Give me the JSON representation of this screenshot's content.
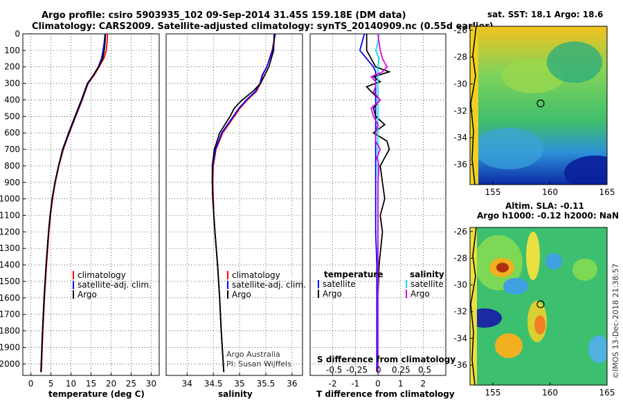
{
  "header": {
    "line1": "Argo profile: csiro 5903935_102 09-Sep-2014 31.45S 159.18E (DM data)",
    "line2": "Climatology: CARS2009. Satellite-adjusted climatology: synTS_20140909.nc (0.55d earlier)"
  },
  "colors": {
    "climatology": "#ff0000",
    "satellite": "#0000ff",
    "argo": "#000000",
    "sat_salinity": "#00e5ee",
    "argo_salinity": "#e000e0"
  },
  "chart_data": [
    {
      "type": "line",
      "id": "temperature",
      "xlabel": "temperature (deg C)",
      "xlim": [
        -2,
        32
      ],
      "xticks": [
        0,
        5,
        10,
        15,
        20,
        25,
        30
      ],
      "xticklabels": [
        "0",
        "5",
        "10",
        "15",
        "20",
        "25",
        "30"
      ],
      "ylim": [
        2070,
        0
      ],
      "yticks": [
        0,
        100,
        200,
        300,
        400,
        500,
        600,
        700,
        800,
        900,
        1000,
        1100,
        1200,
        1300,
        1400,
        1500,
        1600,
        1700,
        1800,
        1900,
        2000
      ],
      "yticklabels": [
        "0",
        "100",
        "200",
        "300",
        "400",
        "500",
        "600",
        "700",
        "800",
        "900",
        "1000",
        "1100",
        "1200",
        "1300",
        "1400",
        "1500",
        "1600",
        "1700",
        "1800",
        "1900",
        "2000"
      ],
      "grid": true,
      "legend": {
        "placement": "lower-center",
        "entries": [
          "climatology",
          "satellite-adj. clim.",
          "Argo"
        ]
      },
      "depth": [
        0,
        50,
        100,
        150,
        200,
        250,
        300,
        400,
        500,
        600,
        700,
        800,
        900,
        1000,
        1100,
        1200,
        1400,
        1600,
        1800,
        2050
      ],
      "series": [
        {
          "name": "climatology",
          "color": "#ff0000",
          "values": [
            19.1,
            19.0,
            18.8,
            18.2,
            17.0,
            15.8,
            14.3,
            12.8,
            11.2,
            9.6,
            8.1,
            7.0,
            6.1,
            5.4,
            4.9,
            4.5,
            3.9,
            3.4,
            3.0,
            2.6
          ]
        },
        {
          "name": "satellite-adj. clim.",
          "color": "#0000ff",
          "values": [
            18.5,
            18.3,
            18.0,
            17.6,
            16.8,
            15.6,
            14.2,
            12.7,
            11.1,
            9.5,
            8.0,
            6.9,
            6.0,
            5.3,
            4.8,
            4.4,
            3.8,
            3.3,
            2.9,
            2.5
          ]
        },
        {
          "name": "Argo",
          "color": "#000000",
          "values": [
            18.6,
            18.5,
            18.3,
            17.9,
            16.9,
            15.6,
            14.1,
            12.6,
            11.0,
            9.4,
            7.9,
            6.9,
            6.0,
            5.3,
            4.8,
            4.4,
            3.8,
            3.3,
            2.9,
            2.5
          ]
        }
      ]
    },
    {
      "type": "line",
      "id": "salinity",
      "xlabel": "salinity",
      "xlim": [
        33.6,
        36.2
      ],
      "xticks": [
        34,
        34.5,
        35,
        35.5,
        36
      ],
      "xticklabels": [
        "34",
        "34.5",
        "35",
        "35.5",
        "36"
      ],
      "ylim": [
        2070,
        0
      ],
      "grid": true,
      "legend": {
        "placement": "lower-center",
        "entries": [
          "climatology",
          "satellite-adj. clim.",
          "Argo"
        ]
      },
      "annotation": [
        "Argo Australia",
        "PI: Susan Wijffels"
      ],
      "depth": [
        0,
        100,
        200,
        250,
        300,
        350,
        400,
        450,
        500,
        600,
        700,
        800,
        900,
        1000,
        1100,
        1200,
        1400,
        1600,
        1800,
        2050
      ],
      "series": [
        {
          "name": "climatology",
          "color": "#ff0000",
          "values": [
            35.68,
            35.62,
            35.52,
            35.44,
            35.4,
            35.32,
            35.15,
            35.01,
            34.9,
            34.68,
            34.55,
            34.5,
            34.49,
            34.5,
            34.51,
            34.53,
            34.58,
            34.62,
            34.65,
            34.7
          ]
        },
        {
          "name": "satellite-adj. clim.",
          "color": "#0000ff",
          "values": [
            35.68,
            35.63,
            35.52,
            35.43,
            35.39,
            35.3,
            35.13,
            34.99,
            34.88,
            34.66,
            34.54,
            34.49,
            34.48,
            34.49,
            34.51,
            34.53,
            34.58,
            34.62,
            34.65,
            34.7
          ]
        },
        {
          "name": "Argo",
          "color": "#000000",
          "values": [
            35.66,
            35.65,
            35.56,
            35.48,
            35.4,
            35.25,
            35.05,
            34.9,
            34.82,
            34.62,
            34.52,
            34.48,
            34.48,
            34.49,
            34.51,
            34.53,
            34.58,
            34.62,
            34.65,
            34.7
          ]
        }
      ]
    },
    {
      "type": "line",
      "id": "difference",
      "xlabel": "T difference from climatology",
      "xlabel2": "S difference from climatology",
      "xlim": [
        -3,
        3
      ],
      "xticks": [
        -2,
        -1,
        0,
        1,
        2
      ],
      "xticklabels": [
        "-2",
        "-1",
        "0",
        "1",
        "2"
      ],
      "xticks2_labels": [
        "-0.5",
        "-0.25",
        "0",
        "0.25",
        "0.5"
      ],
      "ylim": [
        2070,
        0
      ],
      "grid": true,
      "legend": {
        "placement": "lower-center",
        "temperature_title": "temperature",
        "salinity_title": "salinity",
        "entries": [
          "satellite",
          "Argo",
          "satellite",
          "Argo"
        ]
      },
      "depth": [
        0,
        50,
        100,
        150,
        200,
        230,
        260,
        290,
        320,
        350,
        400,
        450,
        500,
        550,
        600,
        650,
        700,
        750,
        800,
        900,
        1000,
        1100,
        1200,
        1400,
        1600,
        1800,
        2050
      ],
      "series": [
        {
          "name": "T satellite",
          "color": "#0000ff",
          "values": [
            -0.6,
            -0.7,
            -0.8,
            -0.5,
            -0.2,
            -0.1,
            -0.1,
            -0.1,
            -0.1,
            -0.1,
            -0.1,
            -0.1,
            -0.1,
            -0.1,
            -0.1,
            -0.1,
            -0.1,
            -0.1,
            -0.1,
            -0.1,
            -0.1,
            -0.1,
            -0.1,
            -0.05,
            -0.05,
            -0.05,
            -0.05
          ]
        },
        {
          "name": "T Argo",
          "color": "#000000",
          "values": [
            -0.5,
            -0.5,
            -0.5,
            -0.3,
            -0.1,
            0.5,
            -0.2,
            0.1,
            -0.5,
            -0.3,
            0.1,
            -0.2,
            -0.1,
            0.3,
            -0.2,
            0.4,
            0.5,
            0.3,
            0.1,
            0.2,
            0.3,
            0.1,
            0.2,
            0.05,
            0.0,
            0.0,
            0.0
          ]
        },
        {
          "name": "S satellite",
          "color": "#00e5ee",
          "values": [
            0.05,
            0.0,
            -0.1,
            0.05,
            0.0,
            0.0,
            0.0,
            0.0,
            0.0,
            0.0,
            0.0,
            0.0,
            0.0,
            0.0,
            0.0,
            0.0,
            0.0,
            0.0,
            0.0,
            0.0,
            0.0,
            0.0,
            0.0,
            0.0,
            0.0,
            0.0,
            0.0
          ]
        },
        {
          "name": "S Argo",
          "color": "#e000e0",
          "values": [
            0.0,
            0.05,
            0.1,
            0.2,
            0.4,
            0.2,
            -0.3,
            -0.1,
            -0.1,
            -0.2,
            0.1,
            -0.3,
            -0.2,
            0.0,
            -0.1,
            -0.1,
            0.1,
            -0.05,
            0.05,
            0.0,
            0.0,
            0.0,
            0.0,
            0.0,
            0.0,
            0.0,
            0.0
          ]
        }
      ]
    },
    {
      "type": "heatmap",
      "id": "sst_map",
      "title": "sat. SST: 18.1 Argo: 18.6",
      "xlim": [
        153,
        165
      ],
      "ylim": [
        -37.5,
        -25.7
      ],
      "xticks": [
        155,
        160,
        165
      ],
      "yticks": [
        -26,
        -28,
        -30,
        -32,
        -34,
        -36
      ],
      "profile_lon": 159.18,
      "profile_lat": -31.45
    },
    {
      "type": "heatmap",
      "id": "sla_map",
      "title_line1": "Altim. SLA: -0.11",
      "title_line2": "Argo h1000: -0.12 h2000: NaN",
      "xlim": [
        153,
        165
      ],
      "ylim": [
        -37.5,
        -25.7
      ],
      "xticks": [
        155,
        160,
        165
      ],
      "yticks": [
        -26,
        -28,
        -30,
        -32,
        -34,
        -36
      ],
      "profile_lon": 159.18,
      "profile_lat": -31.45
    }
  ],
  "watermark": "©IMOS 13-Dec-2018 21:38:57"
}
